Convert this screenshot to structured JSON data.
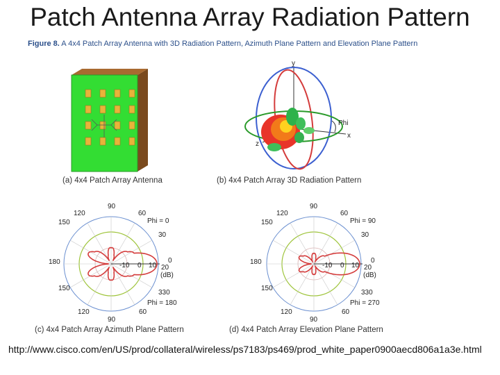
{
  "slide": {
    "title": "Patch Antenna Array Radiation Pattern"
  },
  "figure": {
    "caption_label": "Figure 8.",
    "caption_text": "A 4x4 Patch Array Antenna with 3D Radiation Pattern, Azimuth Plane Pattern and Elevation Plane Pattern"
  },
  "panels": {
    "a": {
      "caption": "(a) 4x4 Patch Array Antenna"
    },
    "b": {
      "caption": "(b) 4x4 Patch Array 3D Radiation Pattern",
      "axis_y": "y",
      "axis_x": "x",
      "axis_z": "z",
      "phi_label": "Phi"
    },
    "c": {
      "caption": "(c) 4x4 Patch Array Azimuth Plane Pattern",
      "angles": {
        "a90": "90",
        "a60": "60",
        "a120": "120",
        "a150": "150",
        "a30": "30",
        "a180": "180",
        "a0": "0",
        "a330": "330",
        "a210": "150",
        "a240": "120",
        "a300": "60",
        "a270": "90"
      },
      "phi_top": "Phi = 0",
      "phi_bottom": "Phi = 180",
      "radial": {
        "r1": "-10",
        "r2": "0",
        "r3": "10",
        "r4": "20",
        "unit": "(dB)"
      }
    },
    "d": {
      "caption": "(d) 4x4 Patch Array Elevation Plane Pattern",
      "angles": {
        "a90": "90",
        "a60": "60",
        "a120": "120",
        "a150": "150",
        "a30": "30",
        "a180": "180",
        "a0": "0",
        "a330": "330",
        "a210": "150",
        "a240": "120",
        "a300": "60",
        "a270": "90"
      },
      "phi_top": "Phi = 90",
      "phi_bottom": "Phi = 270",
      "radial": {
        "r1": "-10",
        "r2": "0",
        "r3": "10",
        "r4": "20",
        "unit": "(dB)"
      }
    }
  },
  "source_url": "http://www.cisco.com/en/US/prod/collateral/wireless/ps7183/ps469/prod_white_paper0900aecd806a1a3e.html",
  "colors": {
    "board": "#33dd33",
    "patch": "#e8b33a",
    "pattern": "#d43b3b",
    "ring": "#6a8fd0",
    "ring_green": "#9ec43a"
  }
}
